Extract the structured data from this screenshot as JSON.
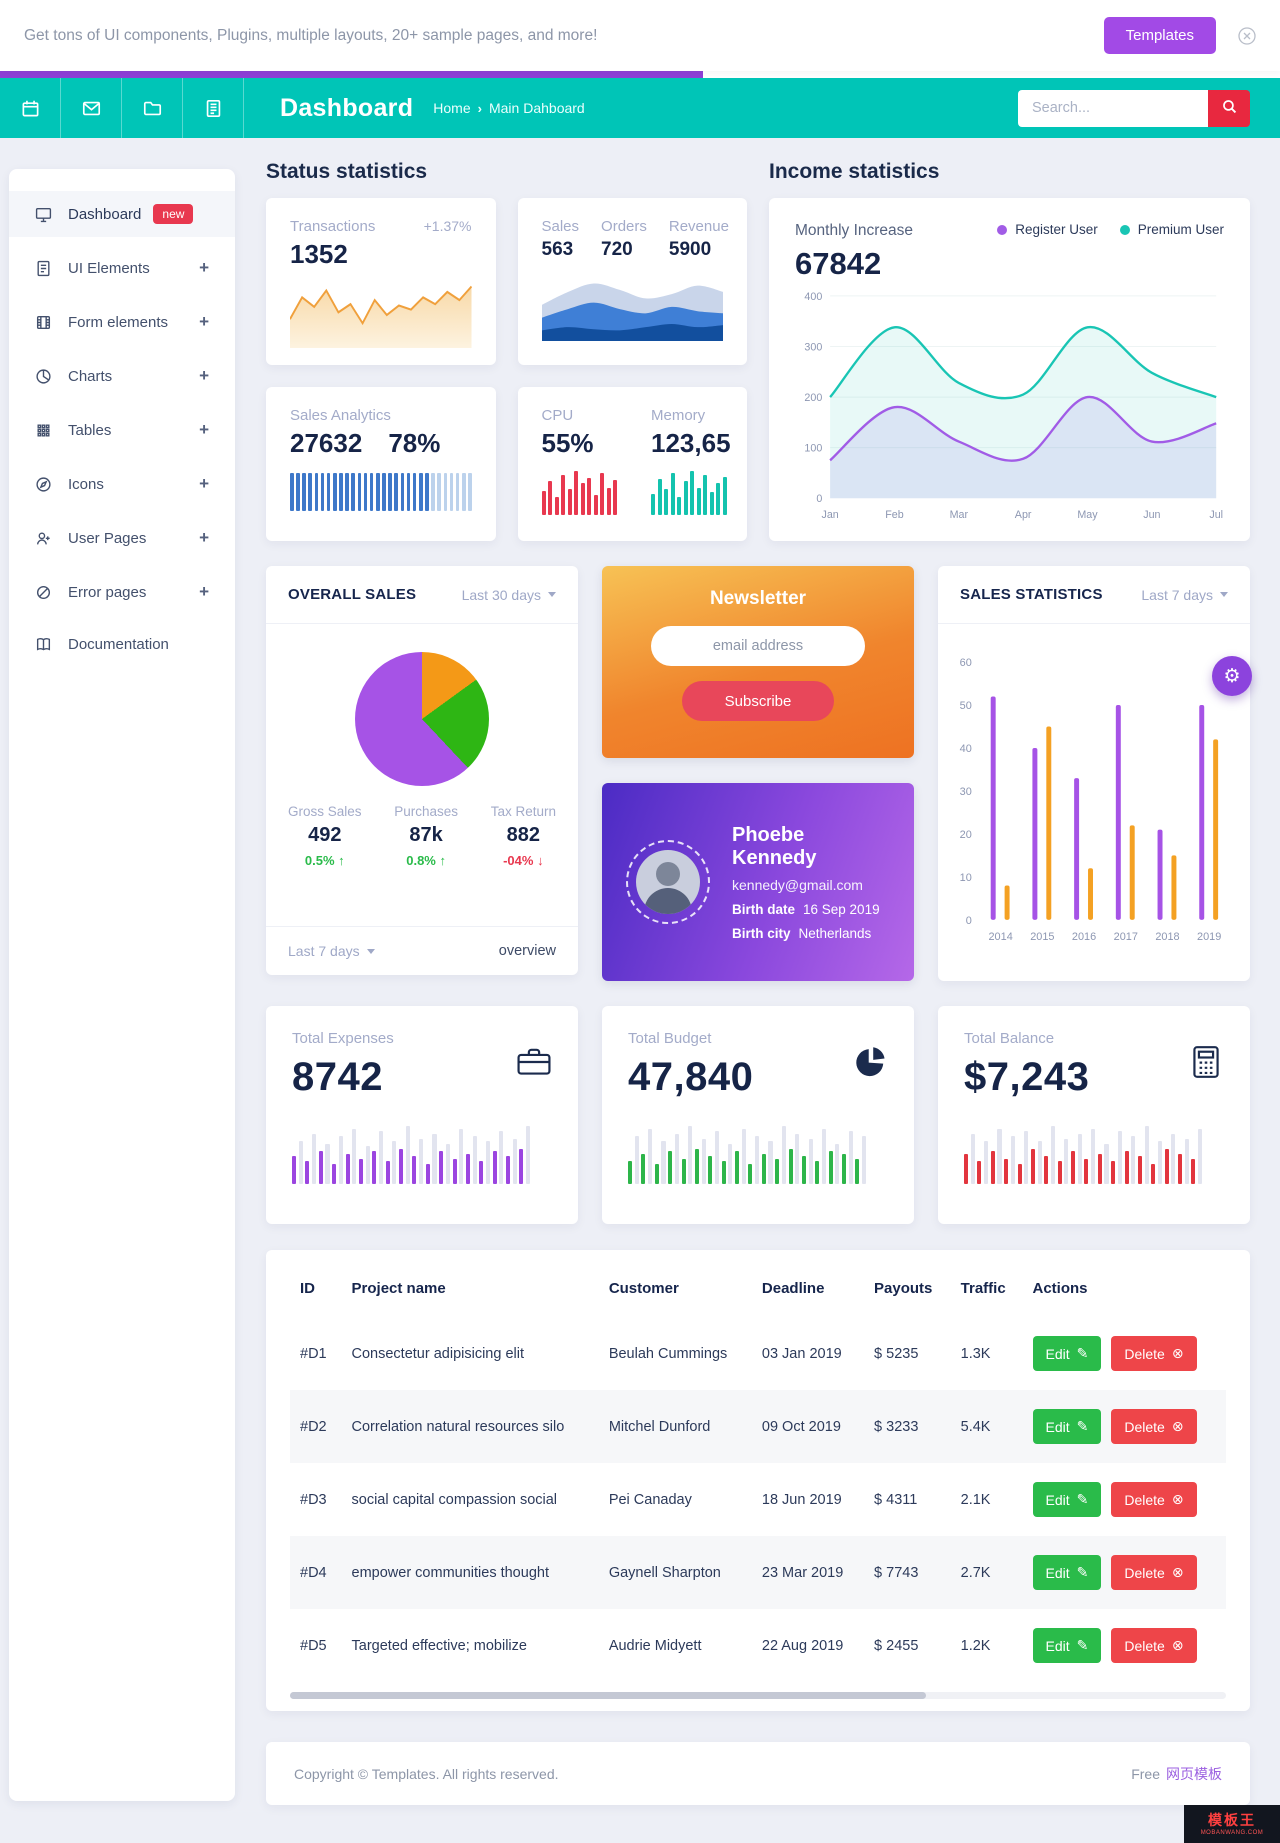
{
  "announcement": {
    "text": "Get tons of UI components, Plugins, multiple layouts, 20+ sample pages, and more!",
    "button_label": "Templates"
  },
  "header": {
    "title": "Dashboard",
    "breadcrumb": {
      "home": "Home",
      "separator": "›",
      "current": "Main Dahboard"
    },
    "search": {
      "placeholder": "Search..."
    }
  },
  "sidebar": {
    "items": [
      {
        "label": "Dashboard",
        "icon": "monitor-icon",
        "icon_key": "monitor",
        "badge": "new",
        "active": true
      },
      {
        "label": "UI Elements",
        "icon": "document-icon",
        "icon_key": "doc",
        "expand": "+"
      },
      {
        "label": "Form elements",
        "icon": "form-icon",
        "icon_key": "film",
        "expand": "+"
      },
      {
        "label": "Charts",
        "icon": "chart-pie-icon",
        "icon_key": "pie",
        "expand": "+"
      },
      {
        "label": "Tables",
        "icon": "table-grid-icon",
        "icon_key": "grid",
        "expand": "+"
      },
      {
        "label": "Icons",
        "icon": "compass-icon",
        "icon_key": "compass",
        "expand": "+"
      },
      {
        "label": "User Pages",
        "icon": "user-plus-icon",
        "icon_key": "userplus",
        "expand": "+"
      },
      {
        "label": "Error pages",
        "icon": "slash-circle-icon",
        "icon_key": "slash",
        "expand": "+"
      },
      {
        "label": "Documentation",
        "icon": "book-icon",
        "icon_key": "book"
      }
    ]
  },
  "status_statistics": {
    "section_title": "Status statistics",
    "transactions": {
      "label": "Transactions",
      "delta": "+1.37%",
      "value": "1352"
    },
    "sales_overview": {
      "items": [
        {
          "label": "Sales",
          "value": "563"
        },
        {
          "label": "Orders",
          "value": "720"
        },
        {
          "label": "Revenue",
          "value": "5900"
        }
      ]
    },
    "sales_analytics": {
      "label": "Sales Analytics",
      "value": "27632",
      "percent": "78%"
    },
    "system": {
      "cpu_label": "CPU",
      "cpu_value": "55%",
      "memory_label": "Memory",
      "memory_value": "123,65"
    }
  },
  "income_statistics": {
    "section_title": "Income statistics",
    "card_title": "Monthly Increase",
    "value": "67842",
    "legend": [
      {
        "label": "Register User",
        "color": "#a15ce6"
      },
      {
        "label": "Premium User",
        "color": "#19c5b4"
      }
    ]
  },
  "overall_sales": {
    "title": "OVERALL SALES",
    "range": "Last 30 days",
    "stats": [
      {
        "label": "Gross Sales",
        "value": "492",
        "delta": "0.5%",
        "arrow": "↑",
        "dir": "up"
      },
      {
        "label": "Purchases",
        "value": "87k",
        "delta": "0.8%",
        "arrow": "↑",
        "dir": "up"
      },
      {
        "label": "Tax Return",
        "value": "882",
        "delta": "-04%",
        "arrow": "↓",
        "dir": "down"
      }
    ],
    "footer_left": "Last 7 days",
    "footer_right": "overview"
  },
  "newsletter": {
    "title": "Newsletter",
    "input_placeholder": "email address",
    "button_label": "Subscribe"
  },
  "profile": {
    "first_name": "Phoebe",
    "last_name": "Kennedy",
    "email": "kennedy@gmail.com",
    "birth_date_label": "Birth date",
    "birth_date": "16 Sep 2019",
    "birth_city_label": "Birth city",
    "birth_city": "Netherlands"
  },
  "sales_statistics": {
    "title": "SALES STATISTICS",
    "range": "Last 7 days",
    "gear_icon": "⚙"
  },
  "totals": [
    {
      "label": "Total Expenses",
      "value": "8742",
      "icon": "briefcase-icon",
      "color": "#9b45e0"
    },
    {
      "label": "Total Budget",
      "value": "47,840",
      "icon": "pie-chart-icon",
      "color": "#2db54a"
    },
    {
      "label": "Total Balance",
      "value": "$7,243",
      "icon": "calculator-icon",
      "color": "#e2353e"
    }
  ],
  "table": {
    "headers": [
      "ID",
      "Project name",
      "Customer",
      "Deadline",
      "Payouts",
      "Traffic",
      "Actions"
    ],
    "rows": [
      {
        "id": "#D1",
        "project": "Consectetur adipisicing elit",
        "customer": "Beulah Cummings",
        "deadline": "03 Jan 2019",
        "payout": "$ 5235",
        "traffic": "1.3K"
      },
      {
        "id": "#D2",
        "project": "Correlation natural resources silo",
        "customer": "Mitchel Dunford",
        "deadline": "09 Oct 2019",
        "payout": "$ 3233",
        "traffic": "5.4K"
      },
      {
        "id": "#D3",
        "project": "social capital compassion social",
        "customer": "Pei Canaday",
        "deadline": "18 Jun 2019",
        "payout": "$ 4311",
        "traffic": "2.1K"
      },
      {
        "id": "#D4",
        "project": "empower communities thought",
        "customer": "Gaynell Sharpton",
        "deadline": "23 Mar 2019",
        "payout": "$ 7743",
        "traffic": "2.7K"
      },
      {
        "id": "#D5",
        "project": "Targeted effective; mobilize",
        "customer": "Audrie Midyett",
        "deadline": "22 Aug 2019",
        "payout": "$ 2455",
        "traffic": "1.2K"
      }
    ],
    "edit_label": "Edit",
    "edit_icon": "✎",
    "delete_label": "Delete",
    "delete_icon": "⊗"
  },
  "footer": {
    "copyright": "Copyright © Templates. All rights reserved.",
    "free": "Free",
    "link": "网页模板"
  },
  "watermark": {
    "line1": "模板王",
    "line2": "MOBANWANG.COM"
  },
  "chart_data": [
    {
      "id": "transactions-sparkline",
      "type": "sparkline",
      "values": [
        30,
        62,
        48,
        72,
        40,
        52,
        24,
        58,
        36,
        50,
        44,
        62,
        52,
        70,
        58,
        78
      ],
      "color": "#f0a03c",
      "fill_top": "#f8d9a8",
      "fill_bottom": "#fdf3e0"
    },
    {
      "id": "sales-area",
      "type": "area-layers",
      "layers": [
        {
          "name": "back",
          "color": "#c9d5ea",
          "values": [
            34,
            46,
            54,
            48,
            40,
            44,
            52,
            46
          ]
        },
        {
          "name": "mid",
          "color": "#3f7fd6",
          "values": [
            22,
            30,
            36,
            30,
            26,
            32,
            28,
            26
          ]
        },
        {
          "name": "front",
          "color": "#124f9e",
          "values": [
            10,
            13,
            11,
            10,
            13,
            16,
            13,
            15
          ]
        }
      ]
    },
    {
      "id": "sales-analytics-barcode",
      "type": "barcode",
      "count": 30,
      "solid": 23,
      "color_solid": "#3e78c9",
      "color_light": "#bcd2ec"
    },
    {
      "id": "cpu-bars",
      "type": "equalizer",
      "color": "#e8384f",
      "values": [
        55,
        78,
        40,
        92,
        60,
        100,
        72,
        85,
        45,
        95,
        62,
        80
      ]
    },
    {
      "id": "memory-bars",
      "type": "equalizer",
      "color": "#14c3ae",
      "values": [
        48,
        82,
        58,
        96,
        42,
        78,
        100,
        62,
        90,
        52,
        72,
        86
      ]
    },
    {
      "id": "income-line",
      "type": "multi-line",
      "categories": [
        "Jan",
        "Feb",
        "Mar",
        "Apr",
        "May",
        "Jun",
        "Jul"
      ],
      "series": [
        {
          "name": "Premium User",
          "color": "#19c5b4",
          "fill": "rgba(25,197,180,0.10)",
          "values": [
            200,
            338,
            228,
            205,
            338,
            248,
            200
          ]
        },
        {
          "name": "Register User",
          "color": "#a15ce6",
          "fill": "rgba(120,90,220,0.12)",
          "values": [
            75,
            180,
            112,
            78,
            200,
            112,
            148
          ]
        }
      ],
      "ylim": [
        0,
        400
      ],
      "yticks": [
        0,
        100,
        200,
        300,
        400
      ],
      "grid": true,
      "legend_position": "top-right"
    },
    {
      "id": "overall-sales-pie",
      "type": "pie",
      "slices": [
        {
          "label": "Purchases",
          "value": 15,
          "color": "#f49917"
        },
        {
          "label": "Tax Return",
          "value": 23,
          "color": "#2eb614"
        },
        {
          "label": "Gross Sales",
          "value": 62,
          "color": "#a653e6"
        }
      ],
      "start": "top"
    },
    {
      "id": "sales-statistics-bars",
      "type": "grouped-bars",
      "categories": [
        "2014",
        "2015",
        "2016",
        "2017",
        "2018",
        "2019"
      ],
      "series": [
        {
          "name": "register",
          "color": "#a653e6",
          "values": [
            52,
            40,
            33,
            50,
            21,
            50
          ]
        },
        {
          "name": "premium",
          "color": "#f4a123",
          "values": [
            8,
            45,
            12,
            22,
            15,
            42
          ]
        }
      ],
      "ylim": [
        0,
        60
      ],
      "yticks": [
        0,
        10,
        20,
        30,
        40,
        50,
        60
      ],
      "grid": false
    },
    {
      "id": "expenses-mini",
      "type": "mini-bars",
      "color": "#9b45e0",
      "alt_color": "#e2e4ef",
      "values": [
        22,
        34,
        18,
        40,
        26,
        32,
        16,
        38,
        24,
        44,
        20,
        30,
        26,
        42,
        18,
        34,
        28,
        46,
        22,
        36,
        16,
        40,
        26,
        32,
        20,
        44,
        24,
        38,
        18,
        34,
        26,
        42,
        22,
        36,
        28,
        46
      ]
    },
    {
      "id": "budget-mini",
      "type": "mini-bars",
      "color": "#2db54a",
      "alt_color": "#e2e4ef",
      "values": [
        18,
        38,
        24,
        44,
        16,
        34,
        26,
        40,
        20,
        46,
        28,
        36,
        22,
        42,
        18,
        32,
        26,
        44,
        16,
        38,
        24,
        34,
        20,
        46,
        28,
        40,
        22,
        36,
        18,
        44,
        26,
        32,
        24,
        42,
        20,
        38
      ]
    },
    {
      "id": "balance-mini",
      "type": "mini-bars",
      "color": "#e2353e",
      "alt_color": "#e2e4ef",
      "values": [
        24,
        40,
        18,
        34,
        26,
        44,
        20,
        38,
        16,
        42,
        28,
        34,
        22,
        46,
        18,
        36,
        26,
        40,
        20,
        44,
        24,
        32,
        18,
        42,
        26,
        38,
        22,
        46,
        16,
        34,
        28,
        40,
        24,
        36,
        20,
        44
      ]
    }
  ]
}
